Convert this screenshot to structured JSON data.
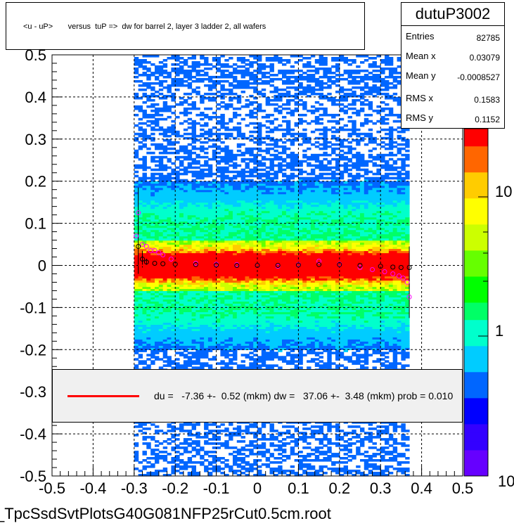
{
  "title": "<u - uP>       versus  tuP =>  dw for barrel 2, layer 3 ladder 2, all wafers",
  "stats": {
    "name": "dutuP3002",
    "rows": [
      {
        "key": "Entries",
        "value": "82785"
      },
      {
        "key": "Mean x",
        "value": "0.03079"
      },
      {
        "key": "Mean y",
        "value": "-0.0008527"
      },
      {
        "key": "RMS x",
        "value": "0.1583"
      },
      {
        "key": "RMS y",
        "value": "0.1152"
      }
    ]
  },
  "legend": {
    "text": "du =   -7.36 +-  0.52 (mkm) dw =   37.06 +-  3.48 (mkm) prob = 0.010",
    "line_color": "#ff0000"
  },
  "footer": "_TpcSsdSvtPlotsG40G081NFP25rCut0.5cm.root",
  "chart_data": {
    "type": "heatmap",
    "xlim": [
      -0.5,
      0.5
    ],
    "ylim": [
      -0.5,
      0.5
    ],
    "x_ticks": [
      "-0.5",
      "-0.4",
      "-0.3",
      "-0.2",
      "-0.1",
      "0",
      "0.1",
      "0.2",
      "0.3",
      "0.4",
      "0.5"
    ],
    "y_ticks": [
      "-0.5",
      "-0.4",
      "-0.3",
      "-0.2",
      "-0.1",
      "0",
      "0.1",
      "0.2",
      "0.3",
      "0.4",
      "0.5"
    ],
    "grid": true,
    "colorbar": {
      "scale": "log",
      "labels": [
        "1",
        "10"
      ],
      "min_label": "10"
    },
    "data_x_range": [
      -0.3,
      0.37
    ],
    "fit_line": {
      "x": [
        -0.29,
        0.37
      ],
      "y": [
        0.0,
        -0.001
      ]
    },
    "profile_black": [
      {
        "x": -0.29,
        "y": 0.045,
        "err": 0.065
      },
      {
        "x": -0.28,
        "y": 0.015,
        "err": 0.02
      },
      {
        "x": -0.27,
        "y": 0.008,
        "err": 0.008
      },
      {
        "x": -0.25,
        "y": 0.005
      },
      {
        "x": -0.23,
        "y": 0.004
      },
      {
        "x": -0.2,
        "y": 0.003
      },
      {
        "x": -0.15,
        "y": 0.002
      },
      {
        "x": -0.1,
        "y": 0.001
      },
      {
        "x": -0.05,
        "y": 0.0
      },
      {
        "x": 0.0,
        "y": 0.0
      },
      {
        "x": 0.05,
        "y": 0.0
      },
      {
        "x": 0.1,
        "y": 0.001
      },
      {
        "x": 0.15,
        "y": 0.002
      },
      {
        "x": 0.2,
        "y": 0.002
      },
      {
        "x": 0.25,
        "y": 0.0
      },
      {
        "x": 0.3,
        "y": -0.002
      },
      {
        "x": 0.33,
        "y": -0.004
      },
      {
        "x": 0.35,
        "y": -0.005
      },
      {
        "x": 0.37,
        "y": -0.005,
        "err": 0.05
      }
    ],
    "profile_magenta": [
      {
        "x": -0.295,
        "y": 0.07
      },
      {
        "x": -0.29,
        "y": 0.125,
        "err": 0.06
      },
      {
        "x": -0.28,
        "y": 0.05
      },
      {
        "x": -0.27,
        "y": 0.045
      },
      {
        "x": -0.26,
        "y": 0.035
      },
      {
        "x": -0.25,
        "y": 0.035
      },
      {
        "x": -0.24,
        "y": 0.03
      },
      {
        "x": -0.23,
        "y": 0.025
      },
      {
        "x": -0.21,
        "y": 0.015
      },
      {
        "x": -0.15,
        "y": 0.005
      },
      {
        "x": -0.1,
        "y": 0.003
      },
      {
        "x": -0.05,
        "y": 0.002
      },
      {
        "x": 0.0,
        "y": 0.0
      },
      {
        "x": 0.05,
        "y": -0.002
      },
      {
        "x": 0.1,
        "y": 0.002
      },
      {
        "x": 0.15,
        "y": 0.01
      },
      {
        "x": 0.2,
        "y": 0.003
      },
      {
        "x": 0.25,
        "y": -0.005
      },
      {
        "x": 0.28,
        "y": -0.01
      },
      {
        "x": 0.31,
        "y": -0.015
      },
      {
        "x": 0.33,
        "y": -0.02
      },
      {
        "x": 0.345,
        "y": -0.025
      },
      {
        "x": 0.355,
        "y": -0.03
      },
      {
        "x": 0.365,
        "y": -0.04
      },
      {
        "x": 0.37,
        "y": -0.075,
        "err": 0.05
      }
    ],
    "colors": {
      "marker_black": "#000000",
      "marker_magenta": "#ff00ff",
      "fit": "#ff0000",
      "palette": [
        "#6600ff",
        "#3300ff",
        "#0000ff",
        "#0066ff",
        "#00ccff",
        "#00ffcc",
        "#00ff66",
        "#00ff00",
        "#66ff00",
        "#ccff00",
        "#ffff00",
        "#ffcc00",
        "#ff6600",
        "#ff0000"
      ]
    }
  }
}
